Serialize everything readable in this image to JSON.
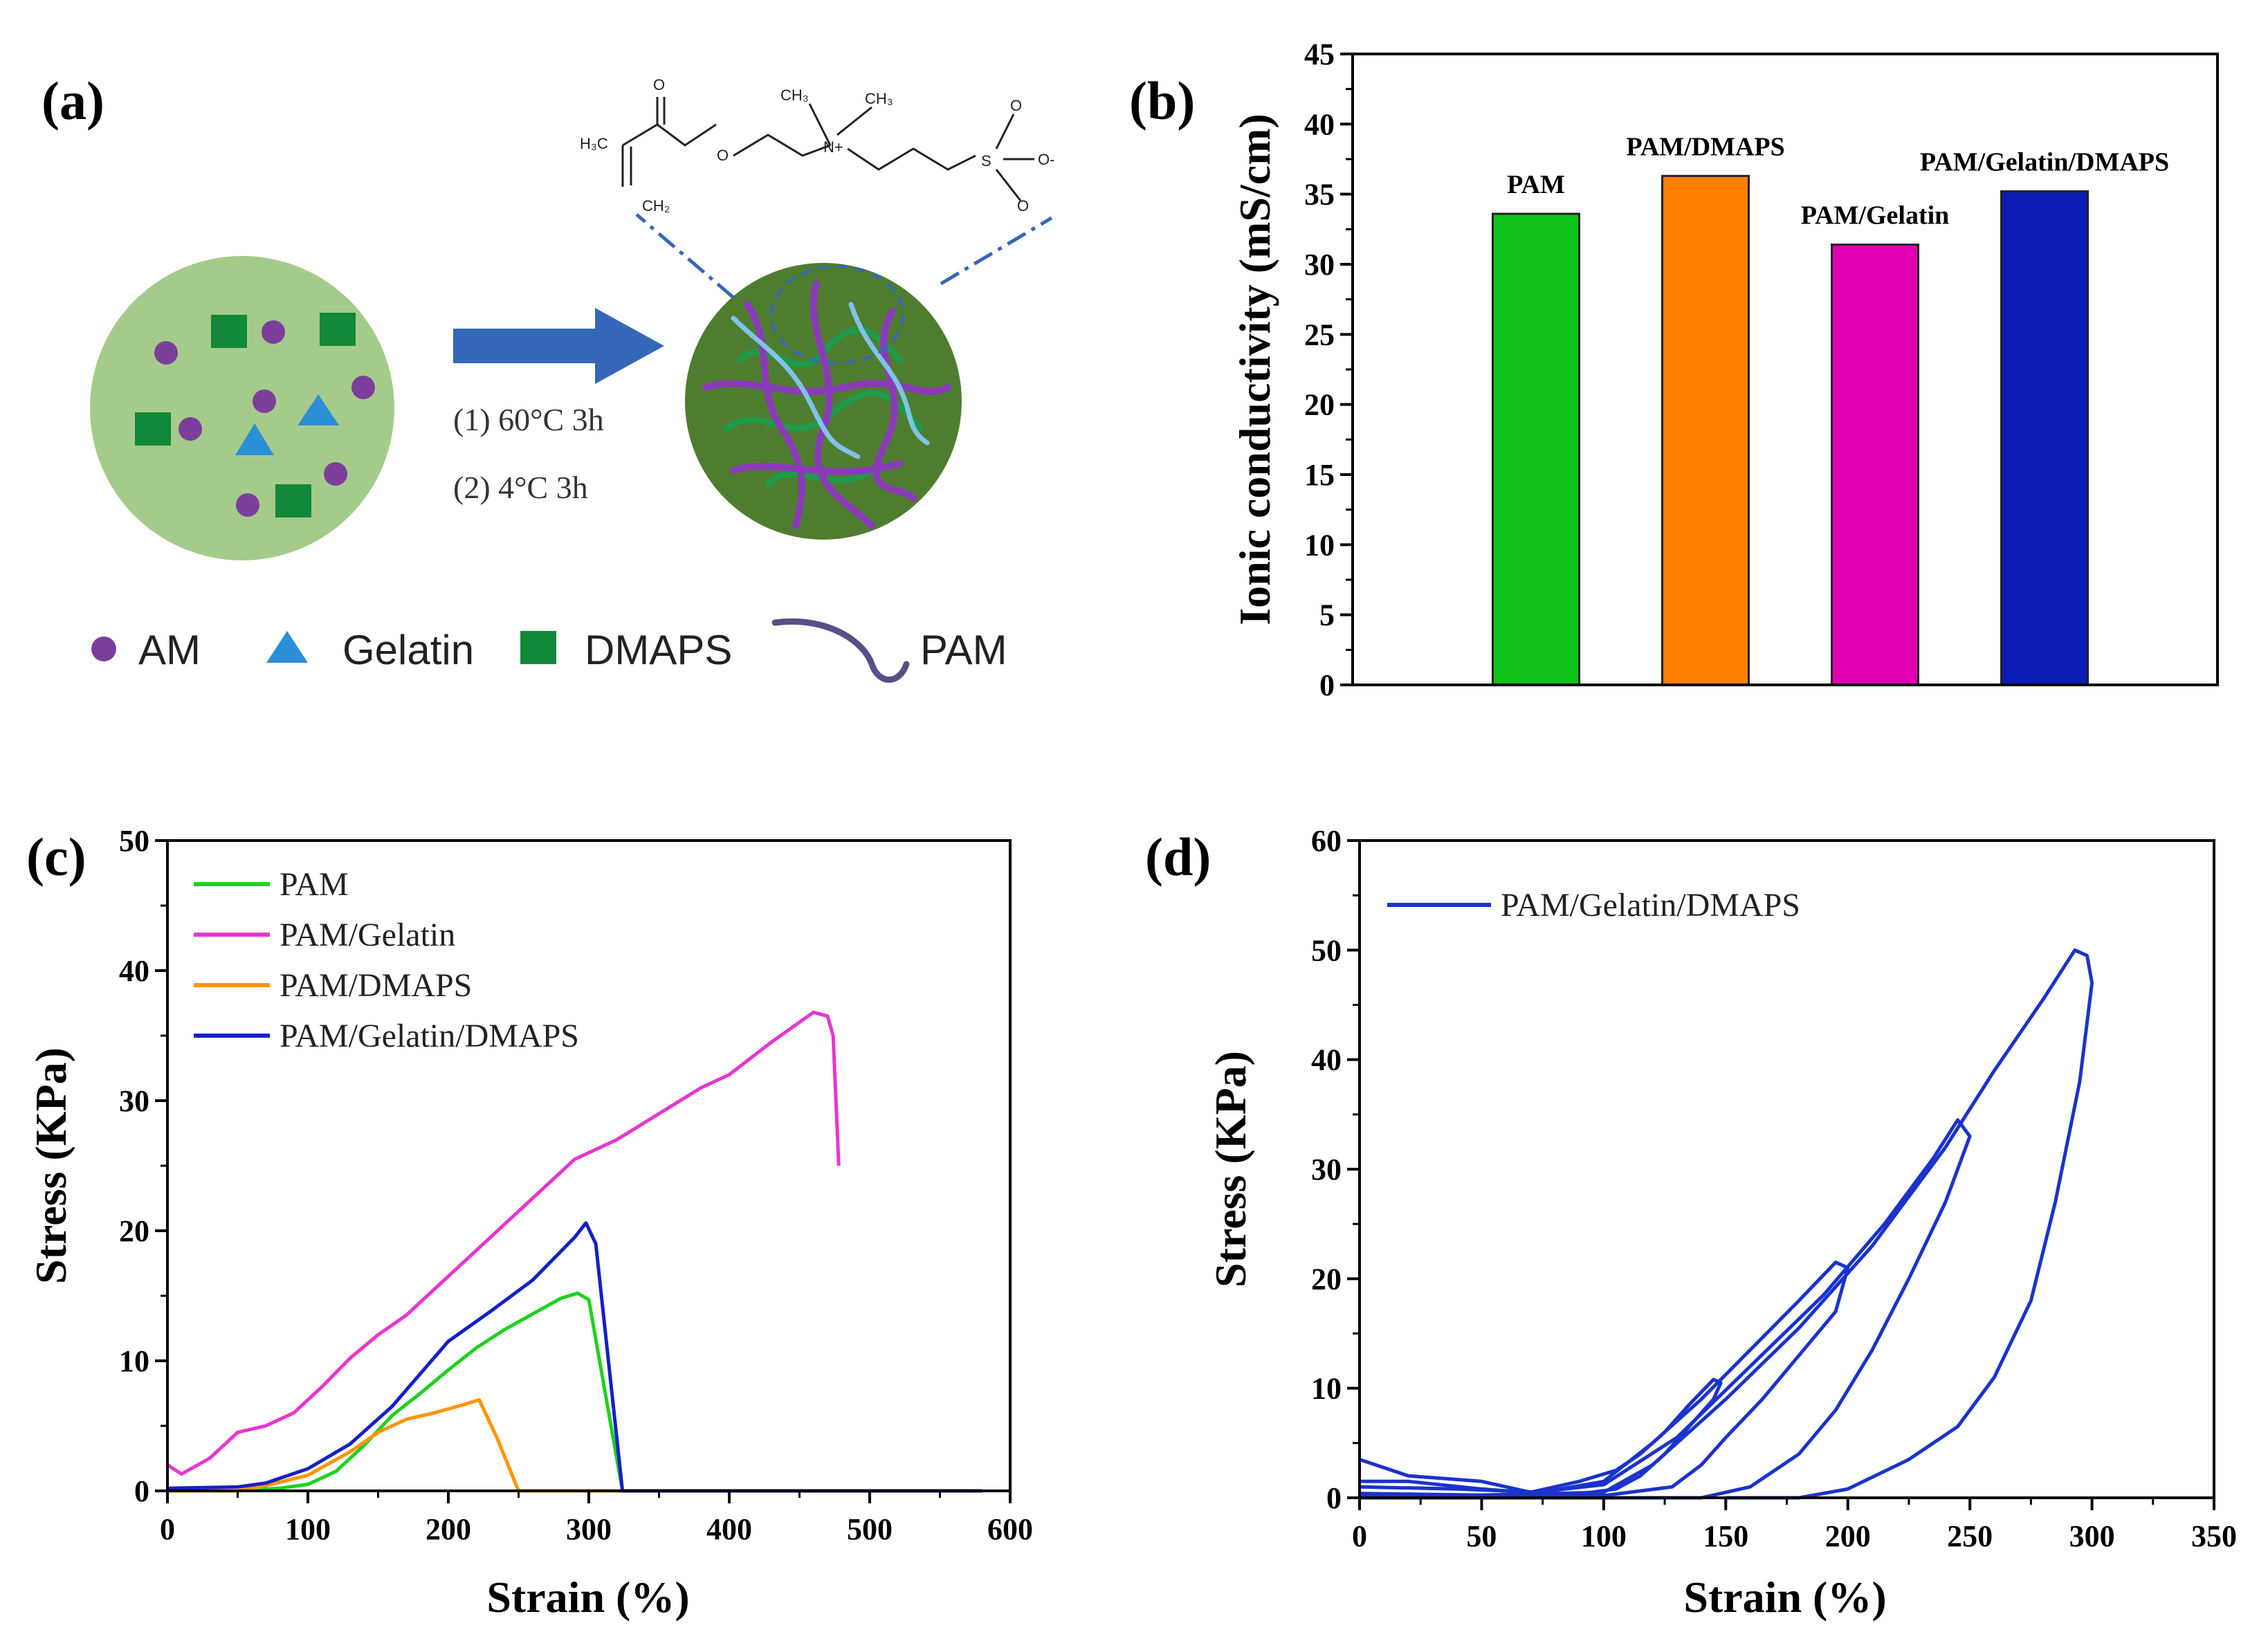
{
  "panels": {
    "a": {
      "label": "(a)",
      "conditions": [
        "(1) 60°C 3h",
        "(2) 4°C 3h"
      ],
      "monomer_atoms": [
        "H₃C",
        "O",
        "O",
        "CH₃",
        "CH₃",
        "N+",
        "O",
        "O",
        "O-",
        "S",
        "CH₂"
      ],
      "legend": [
        "AM",
        "Gelatin",
        "DMAPS",
        "PAM"
      ],
      "colors": {
        "am": "#7b3f9b",
        "gelatin": "#2b8fd6",
        "dmaps": "#12883a",
        "pam": "#5a4e87",
        "solution": "#a5cb8a",
        "gel": "#4e7d2f",
        "arrow": "#3567b8"
      }
    },
    "b": {
      "label": "(b)"
    },
    "c": {
      "label": "(c)"
    },
    "d": {
      "label": "(d)"
    }
  },
  "chart_data": [
    {
      "id": "b",
      "type": "bar",
      "categories": [
        "PAM",
        "PAM/DMAPS",
        "PAM/Gelatin",
        "PAM/Gelatin/DMAPS"
      ],
      "values": [
        33.6,
        36.3,
        31.4,
        35.2
      ],
      "colors": [
        "#10c21a",
        "#ff8000",
        "#e100b4",
        "#0a1cb4"
      ],
      "ylabel": "Ionic conductivity (mS/cm)",
      "ylim": [
        0,
        45
      ],
      "yticks": [
        "0",
        "5",
        "10",
        "15",
        "20",
        "25",
        "30",
        "35",
        "40",
        "45"
      ],
      "grid": false
    },
    {
      "id": "c",
      "type": "line",
      "xlabel": "Strain (%)",
      "ylabel": "Stress (KPa)",
      "xlim": [
        0,
        600
      ],
      "ylim": [
        0,
        50
      ],
      "xticks": [
        "0",
        "100",
        "200",
        "300",
        "400",
        "500",
        "600"
      ],
      "yticks": [
        "0",
        "10",
        "20",
        "30",
        "40",
        "50"
      ],
      "legend": "top-left",
      "series": [
        {
          "name": "PAM",
          "color": "#1fd11f",
          "points": [
            [
              0,
              0
            ],
            [
              50,
              0
            ],
            [
              80,
              0.2
            ],
            [
              100,
              0.5
            ],
            [
              120,
              1.5
            ],
            [
              140,
              3.5
            ],
            [
              160,
              5.8
            ],
            [
              180,
              7.5
            ],
            [
              200,
              9.3
            ],
            [
              220,
              11
            ],
            [
              240,
              12.4
            ],
            [
              260,
              13.6
            ],
            [
              280,
              14.8
            ],
            [
              292,
              15.2
            ],
            [
              300,
              14.7
            ],
            [
              324,
              0
            ],
            [
              480,
              0
            ]
          ]
        },
        {
          "name": "PAM/Gelatin",
          "color": "#e636d0",
          "points": [
            [
              0,
              2
            ],
            [
              10,
              1.3
            ],
            [
              30,
              2.5
            ],
            [
              50,
              4.5
            ],
            [
              70,
              5
            ],
            [
              90,
              6
            ],
            [
              110,
              8
            ],
            [
              130,
              10.2
            ],
            [
              150,
              12
            ],
            [
              170,
              13.5
            ],
            [
              200,
              16.5
            ],
            [
              230,
              19.5
            ],
            [
              260,
              22.5
            ],
            [
              290,
              25.5
            ],
            [
              320,
              27
            ],
            [
              350,
              29
            ],
            [
              380,
              31
            ],
            [
              400,
              32
            ],
            [
              430,
              34.5
            ],
            [
              460,
              36.8
            ],
            [
              470,
              36.5
            ],
            [
              474,
              35
            ],
            [
              478,
              25
            ]
          ]
        },
        {
          "name": "PAM/DMAPS",
          "color": "#ff9500",
          "points": [
            [
              0,
              0
            ],
            [
              50,
              0
            ],
            [
              70,
              0.4
            ],
            [
              100,
              1.2
            ],
            [
              130,
              3
            ],
            [
              150,
              4.5
            ],
            [
              170,
              5.5
            ],
            [
              190,
              6
            ],
            [
              210,
              6.6
            ],
            [
              222,
              7
            ],
            [
              235,
              4
            ],
            [
              250,
              0
            ],
            [
              330,
              0
            ]
          ]
        },
        {
          "name": "PAM/Gelatin/DMAPS",
          "color": "#1420c8",
          "points": [
            [
              0,
              0.2
            ],
            [
              50,
              0.3
            ],
            [
              70,
              0.6
            ],
            [
              100,
              1.7
            ],
            [
              130,
              3.6
            ],
            [
              160,
              6.5
            ],
            [
              180,
              9
            ],
            [
              200,
              11.5
            ],
            [
              230,
              13.8
            ],
            [
              260,
              16.2
            ],
            [
              290,
              19.5
            ],
            [
              298,
              20.6
            ],
            [
              305,
              19
            ],
            [
              324,
              0
            ],
            [
              580,
              0
            ]
          ]
        }
      ]
    },
    {
      "id": "d",
      "type": "line",
      "xlabel": "Strain (%)",
      "ylabel": "Stress (KPa)",
      "xlim": [
        0,
        350
      ],
      "ylim": [
        0,
        60
      ],
      "xticks": [
        "0",
        "50",
        "100",
        "150",
        "200",
        "250",
        "300",
        "350"
      ],
      "yticks": [
        "0",
        "10",
        "20",
        "30",
        "40",
        "50",
        "60"
      ],
      "legend": "top-left",
      "series": [
        {
          "name": "PAM/Gelatin/DMAPS",
          "color": "#1a33cc",
          "segments": [
            [
              [
                0,
                3.5
              ],
              [
                20,
                2
              ],
              [
                50,
                1.5
              ],
              [
                70,
                0.5
              ],
              [
                90,
                1.5
              ],
              [
                105,
                2.5
              ],
              [
                115,
                4
              ],
              [
                125,
                6
              ],
              [
                135,
                8.5
              ],
              [
                145,
                10.8
              ],
              [
                148,
                10.5
              ],
              [
                145,
                9
              ],
              [
                135,
                6.5
              ],
              [
                125,
                4
              ],
              [
                115,
                2
              ],
              [
                105,
                0.8
              ],
              [
                95,
                0.5
              ],
              [
                80,
                0.3
              ],
              [
                50,
                0.8
              ],
              [
                20,
                1.5
              ],
              [
                0,
                1.5
              ]
            ],
            [
              [
                0,
                1
              ],
              [
                40,
                0.8
              ],
              [
                75,
                0.5
              ],
              [
                100,
                1.5
              ],
              [
                120,
                5
              ],
              [
                140,
                9
              ],
              [
                160,
                13.5
              ],
              [
                180,
                18
              ],
              [
                195,
                21.5
              ],
              [
                200,
                21
              ],
              [
                195,
                17
              ],
              [
                180,
                13
              ],
              [
                165,
                9
              ],
              [
                150,
                5.5
              ],
              [
                140,
                3
              ],
              [
                128,
                1
              ],
              [
                100,
                0.2
              ],
              [
                60,
                0.2
              ],
              [
                0,
                0.4
              ]
            ],
            [
              [
                0,
                0.3
              ],
              [
                60,
                0.2
              ],
              [
                100,
                1.2
              ],
              [
                130,
                5.5
              ],
              [
                160,
                12
              ],
              [
                190,
                18.5
              ],
              [
                215,
                25
              ],
              [
                235,
                31
              ],
              [
                245,
                34.5
              ],
              [
                250,
                33
              ],
              [
                240,
                27
              ],
              [
                225,
                20
              ],
              [
                210,
                13.5
              ],
              [
                195,
                8
              ],
              [
                180,
                4
              ],
              [
                160,
                1
              ],
              [
                140,
                0
              ],
              [
                100,
                0
              ],
              [
                0,
                0
              ]
            ],
            [
              [
                0,
                0
              ],
              [
                100,
                0.5
              ],
              [
                120,
                3
              ],
              [
                150,
                9
              ],
              [
                180,
                15.5
              ],
              [
                210,
                23
              ],
              [
                240,
                32
              ],
              [
                260,
                39
              ],
              [
                280,
                45.5
              ],
              [
                293,
                50
              ],
              [
                298,
                49.5
              ],
              [
                300,
                47
              ],
              [
                295,
                38
              ],
              [
                285,
                27
              ],
              [
                275,
                18
              ],
              [
                260,
                11
              ],
              [
                245,
                6.5
              ],
              [
                225,
                3.5
              ],
              [
                200,
                0.8
              ],
              [
                180,
                0
              ],
              [
                150,
                0
              ]
            ]
          ]
        }
      ]
    }
  ]
}
